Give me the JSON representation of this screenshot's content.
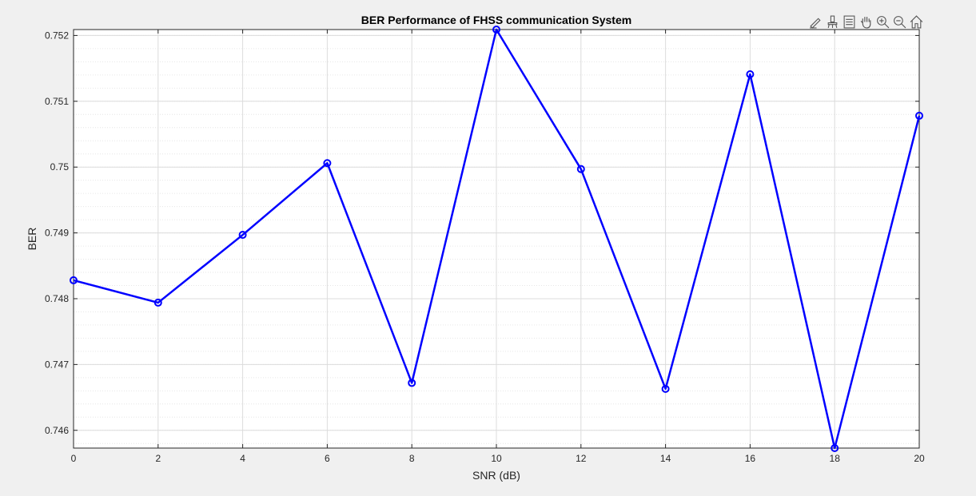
{
  "toolbar": {
    "icons": [
      "edit-icon",
      "brush-icon",
      "datatip-icon",
      "pan-icon",
      "zoom-in-icon",
      "zoom-out-icon",
      "home-icon"
    ]
  },
  "colors": {
    "background": "#f0f0f0",
    "axes_bg": "#ffffff",
    "series": "#0000ff",
    "grid": "#dcdcdc"
  },
  "chart_data": {
    "type": "line",
    "title": "BER Performance of FHSS communication System",
    "xlabel": "SNR (dB)",
    "ylabel": "BER",
    "x": [
      0,
      2,
      4,
      6,
      8,
      10,
      12,
      14,
      16,
      18,
      20
    ],
    "series": [
      {
        "values": [
          0.74828,
          0.74794,
          0.74897,
          0.75006,
          0.74672,
          0.75209,
          0.74997,
          0.74663,
          0.75141,
          0.74573,
          0.75078
        ],
        "marker": "circle",
        "color": "#0000ff"
      }
    ],
    "xlim": [
      0,
      20
    ],
    "ylim": [
      0.74573,
      0.75209
    ],
    "xticks": [
      0,
      2,
      4,
      6,
      8,
      10,
      12,
      14,
      16,
      18,
      20
    ],
    "yticks": [
      0.746,
      0.747,
      0.748,
      0.749,
      0.75,
      0.751,
      0.752
    ],
    "xtick_labels": [
      "0",
      "2",
      "4",
      "6",
      "8",
      "10",
      "12",
      "14",
      "16",
      "18",
      "20"
    ],
    "ytick_labels": [
      "0.746",
      "0.747",
      "0.748",
      "0.749",
      "0.75",
      "0.751",
      "0.752"
    ],
    "grid": true,
    "minor_grid_y": true
  }
}
